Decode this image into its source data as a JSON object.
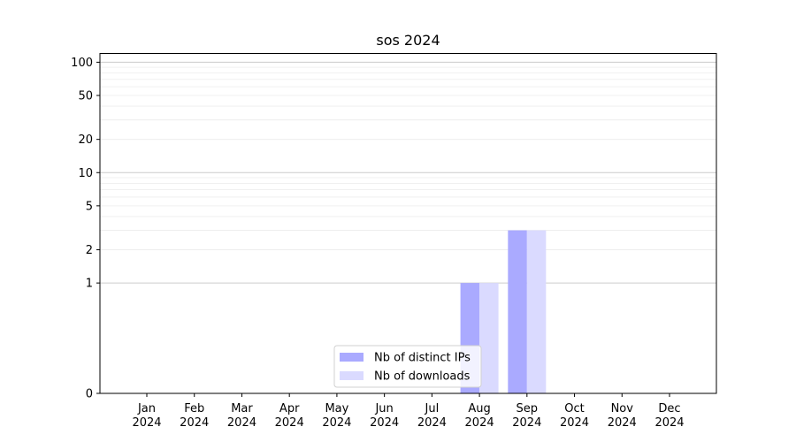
{
  "chart_data": {
    "type": "bar",
    "title": "sos 2024",
    "xlabel": "",
    "ylabel": "",
    "y_scale": "symlog",
    "ylim": [
      0,
      120
    ],
    "y_ticks": [
      0,
      1,
      2,
      5,
      10,
      20,
      50,
      100
    ],
    "grid": true,
    "legend_position": "bottom-center",
    "categories": [
      {
        "month": "Jan",
        "year": "2024"
      },
      {
        "month": "Feb",
        "year": "2024"
      },
      {
        "month": "Mar",
        "year": "2024"
      },
      {
        "month": "Apr",
        "year": "2024"
      },
      {
        "month": "May",
        "year": "2024"
      },
      {
        "month": "Jun",
        "year": "2024"
      },
      {
        "month": "Jul",
        "year": "2024"
      },
      {
        "month": "Aug",
        "year": "2024"
      },
      {
        "month": "Sep",
        "year": "2024"
      },
      {
        "month": "Oct",
        "year": "2024"
      },
      {
        "month": "Nov",
        "year": "2024"
      },
      {
        "month": "Dec",
        "year": "2024"
      }
    ],
    "series": [
      {
        "name": "Nb of distinct IPs",
        "color": "#aaaaff",
        "values": [
          0,
          0,
          0,
          0,
          0,
          0,
          0,
          1,
          3,
          0,
          0,
          0
        ]
      },
      {
        "name": "Nb of downloads",
        "color": "#dadaff",
        "values": [
          0,
          0,
          0,
          0,
          0,
          0,
          0,
          1,
          3,
          0,
          0,
          0
        ]
      }
    ]
  }
}
